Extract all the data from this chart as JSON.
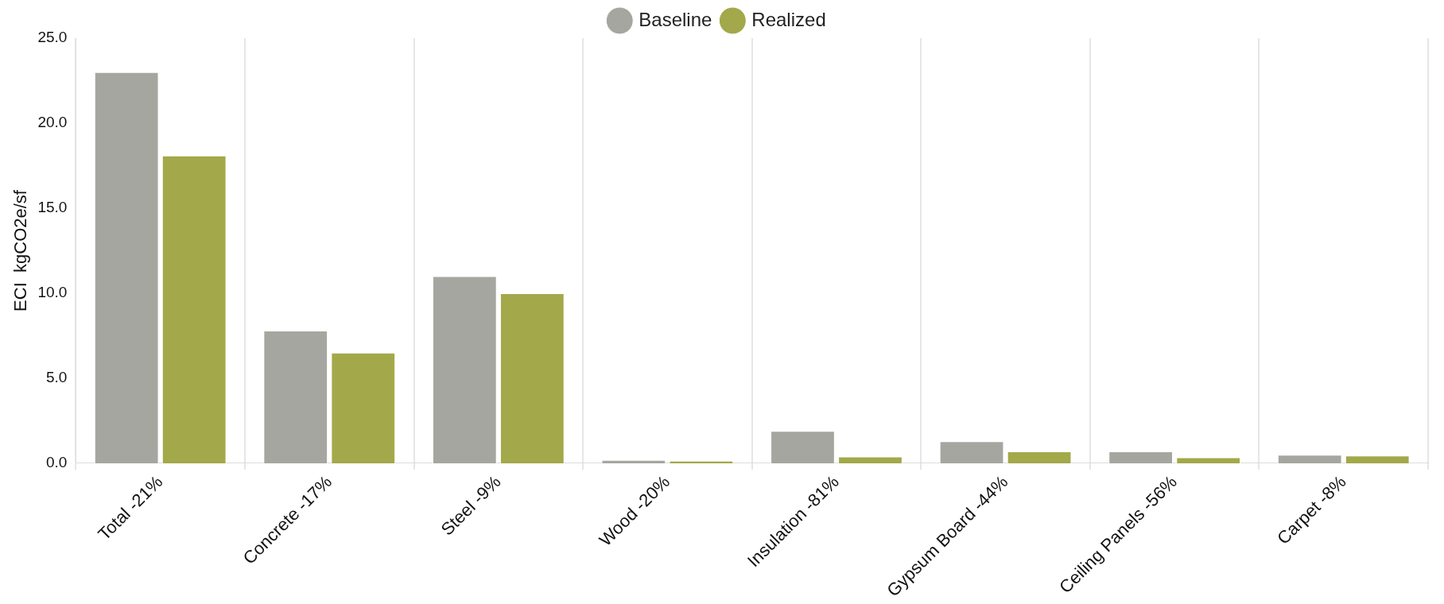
{
  "chart_data": {
    "type": "bar",
    "ylabel": "ECI  kgCO2e/sf",
    "categories": [
      "Total -21%",
      "Concrete -17%",
      "Steel -9%",
      "Wood -20%",
      "Insulation -81%",
      "Gypsum Board -44%",
      "Ceiling Panels -56%",
      "Carpet -8%"
    ],
    "series": [
      {
        "name": "Baseline",
        "color": "#a6a6a1",
        "values": [
          23.0,
          7.8,
          11.0,
          0.2,
          1.9,
          1.3,
          0.7,
          0.5
        ]
      },
      {
        "name": "Realized",
        "color": "#a3a84a",
        "values": [
          18.1,
          6.5,
          10.0,
          0.15,
          0.4,
          0.7,
          0.35,
          0.45
        ]
      }
    ],
    "ylim": [
      0,
      25
    ],
    "yticks": [
      {
        "value": 0,
        "label": "0.0"
      },
      {
        "value": 5,
        "label": "5.0"
      },
      {
        "value": 10,
        "label": "10.0"
      },
      {
        "value": 15,
        "label": "15.0"
      },
      {
        "value": 20,
        "label": "20.0"
      },
      {
        "value": 25,
        "label": "25.0"
      }
    ],
    "grid": "x",
    "legend": "top"
  }
}
